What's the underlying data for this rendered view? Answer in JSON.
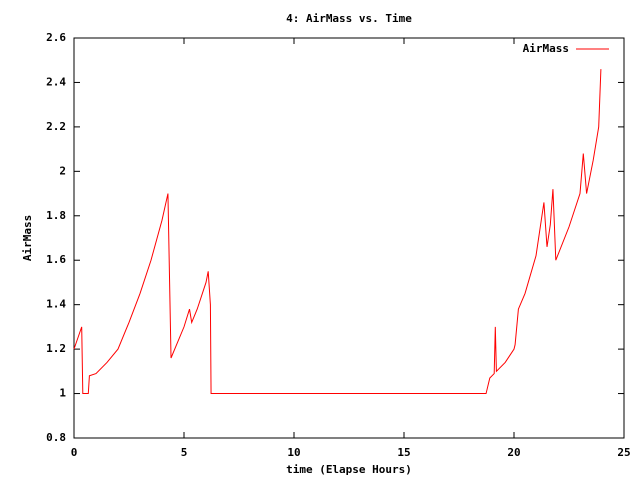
{
  "chart_data": {
    "type": "line",
    "title": "4: AirMass vs. Time",
    "x_label": "time (Elapse Hours)",
    "y_label": "AirMass",
    "xlim": [
      0,
      25
    ],
    "xticks": [
      0,
      5,
      10,
      15,
      20,
      25
    ],
    "ylim": [
      0.8,
      2.6
    ],
    "yticks": [
      0.8,
      1,
      1.2,
      1.4,
      1.6,
      1.8,
      2,
      2.2,
      2.4,
      2.6
    ],
    "legend": "top-right",
    "series": [
      {
        "name": "AirMass",
        "color": "#ff0000",
        "x": [
          0,
          0.35,
          0.4,
          0.65,
          0.7,
          1,
          1.5,
          2,
          2.5,
          3,
          3.5,
          4,
          4.27,
          4.41,
          5,
          5.25,
          5.35,
          5.6,
          6,
          6.1,
          6.2,
          6.23,
          18.73,
          18.9,
          19.1,
          19.15,
          19.2,
          19.6,
          20,
          20.05,
          20.2,
          20.5,
          21,
          21.36,
          21.5,
          21.65,
          21.77,
          21.9,
          22.5,
          23,
          23.15,
          23.3,
          23.6,
          23.85,
          23.95
        ],
        "values": [
          1.2,
          1.3,
          1.0,
          1.0,
          1.08,
          1.09,
          1.14,
          1.2,
          1.32,
          1.45,
          1.6,
          1.78,
          1.9,
          1.16,
          1.3,
          1.38,
          1.32,
          1.38,
          1.5,
          1.55,
          1.4,
          1.0,
          1.0,
          1.07,
          1.09,
          1.3,
          1.1,
          1.14,
          1.2,
          1.22,
          1.38,
          1.45,
          1.62,
          1.86,
          1.66,
          1.76,
          1.92,
          1.6,
          1.75,
          1.9,
          2.08,
          1.9,
          2.05,
          2.2,
          2.46
        ]
      }
    ]
  }
}
